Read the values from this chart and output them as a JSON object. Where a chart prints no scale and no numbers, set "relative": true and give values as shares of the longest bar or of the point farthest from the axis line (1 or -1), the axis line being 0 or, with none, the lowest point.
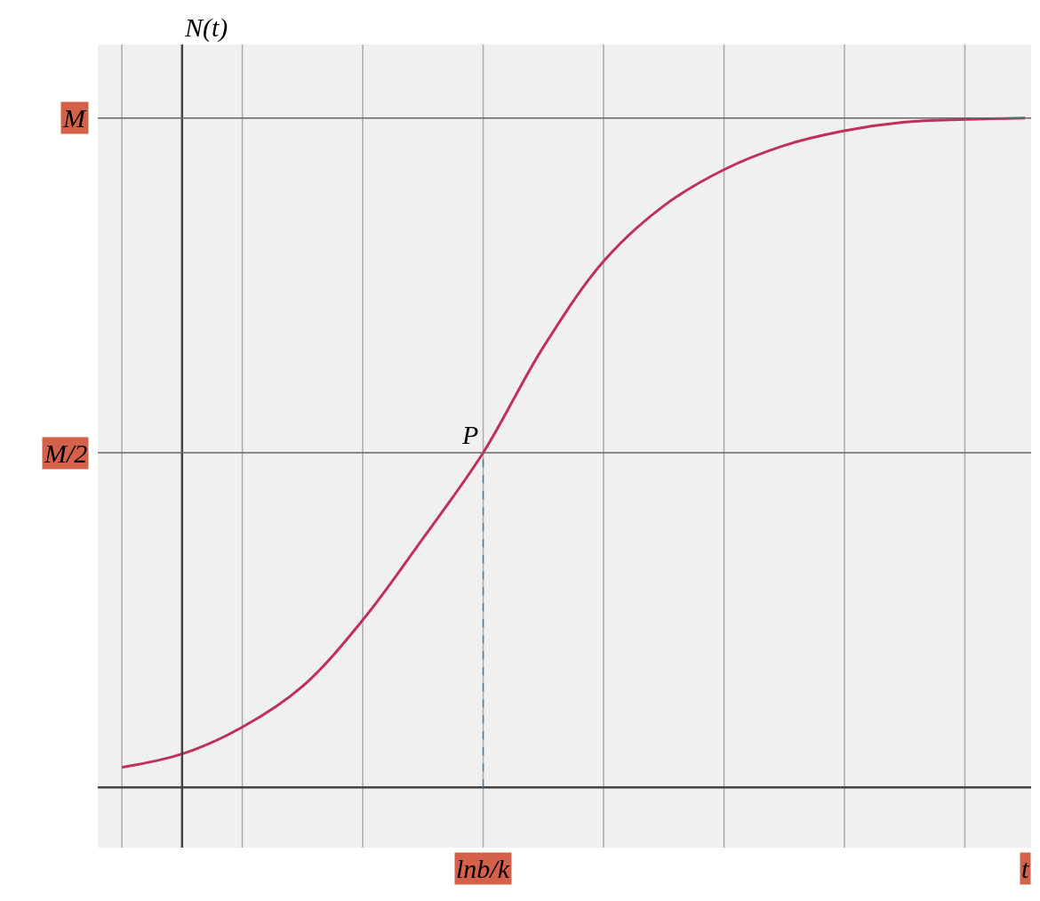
{
  "chart_data": {
    "type": "line",
    "relative": true,
    "xlabel": "t",
    "ylabel": "N(t)",
    "categories": [
      null,
      null,
      null,
      null,
      null,
      null,
      null,
      null,
      null,
      null,
      null,
      null,
      null,
      null,
      null,
      null
    ],
    "series": [
      {
        "color": "#c0305a",
        "values": [
          0.03,
          0.05,
          0.09,
          0.151,
          0.25,
          0.372,
          0.5,
          0.658,
          0.786,
          0.869,
          0.923,
          0.959,
          0.981,
          0.994,
          0.998,
          1
        ]
      }
    ],
    "ref_lines": [
      {
        "axis": "y",
        "value": 1,
        "label": "M",
        "color": "#666666"
      },
      {
        "axis": "y",
        "value": 0.5,
        "label": "M/2",
        "color": "#666666"
      }
    ],
    "annotations": [
      {
        "text": "P",
        "y": 0.5
      },
      "lnb/k"
    ],
    "grid": "x",
    "marker": "none",
    "line_style": "solid"
  }
}
